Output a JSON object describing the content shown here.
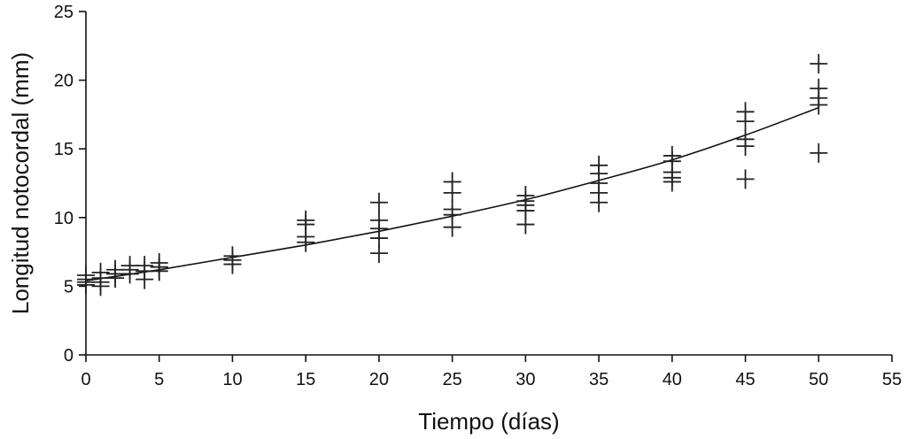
{
  "chart_data": {
    "type": "scatter",
    "xlabel": "Tiempo (días)",
    "ylabel": "Longitud notocordal (mm)",
    "xlim": [
      0,
      55
    ],
    "ylim": [
      0,
      25
    ],
    "xticks": [
      0,
      5,
      10,
      15,
      20,
      25,
      30,
      35,
      40,
      45,
      50,
      55
    ],
    "yticks": [
      0,
      5,
      10,
      15,
      20,
      25
    ],
    "grid": false,
    "marker": "plus",
    "colors": {
      "marks": "#222222",
      "axes": "#111111"
    },
    "points": [
      {
        "x": 0,
        "y": 5.8
      },
      {
        "x": 0,
        "y": 5.5
      },
      {
        "x": 0,
        "y": 5.3
      },
      {
        "x": 0,
        "y": 5.1
      },
      {
        "x": 1,
        "y": 6.0
      },
      {
        "x": 1,
        "y": 5.6
      },
      {
        "x": 1,
        "y": 5.3
      },
      {
        "x": 1,
        "y": 5.0
      },
      {
        "x": 2,
        "y": 6.2
      },
      {
        "x": 2,
        "y": 5.9
      },
      {
        "x": 2,
        "y": 5.6
      },
      {
        "x": 3,
        "y": 6.5
      },
      {
        "x": 3,
        "y": 6.2
      },
      {
        "x": 3,
        "y": 5.9
      },
      {
        "x": 4,
        "y": 6.5
      },
      {
        "x": 4,
        "y": 6.1
      },
      {
        "x": 4,
        "y": 5.5
      },
      {
        "x": 5,
        "y": 6.7
      },
      {
        "x": 5,
        "y": 6.4
      },
      {
        "x": 5,
        "y": 6.1
      },
      {
        "x": 10,
        "y": 7.2
      },
      {
        "x": 10,
        "y": 6.9
      },
      {
        "x": 10,
        "y": 6.6
      },
      {
        "x": 15,
        "y": 9.8
      },
      {
        "x": 15,
        "y": 9.5
      },
      {
        "x": 15,
        "y": 8.6
      },
      {
        "x": 15,
        "y": 8.2
      },
      {
        "x": 20,
        "y": 11.1
      },
      {
        "x": 20,
        "y": 9.8
      },
      {
        "x": 20,
        "y": 9.2
      },
      {
        "x": 20,
        "y": 8.5
      },
      {
        "x": 20,
        "y": 7.4
      },
      {
        "x": 25,
        "y": 12.6
      },
      {
        "x": 25,
        "y": 11.8
      },
      {
        "x": 25,
        "y": 10.6
      },
      {
        "x": 25,
        "y": 10.2
      },
      {
        "x": 25,
        "y": 9.3
      },
      {
        "x": 30,
        "y": 11.6
      },
      {
        "x": 30,
        "y": 11.2
      },
      {
        "x": 30,
        "y": 10.9
      },
      {
        "x": 30,
        "y": 10.5
      },
      {
        "x": 30,
        "y": 9.5
      },
      {
        "x": 35,
        "y": 13.8
      },
      {
        "x": 35,
        "y": 13.2
      },
      {
        "x": 35,
        "y": 12.5
      },
      {
        "x": 35,
        "y": 11.8
      },
      {
        "x": 35,
        "y": 11.1
      },
      {
        "x": 40,
        "y": 14.5
      },
      {
        "x": 40,
        "y": 14.1
      },
      {
        "x": 40,
        "y": 13.3
      },
      {
        "x": 40,
        "y": 12.9
      },
      {
        "x": 40,
        "y": 12.6
      },
      {
        "x": 45,
        "y": 17.7
      },
      {
        "x": 45,
        "y": 17.0
      },
      {
        "x": 45,
        "y": 15.7
      },
      {
        "x": 45,
        "y": 15.2
      },
      {
        "x": 45,
        "y": 12.8
      },
      {
        "x": 50,
        "y": 21.2
      },
      {
        "x": 50,
        "y": 19.4
      },
      {
        "x": 50,
        "y": 18.7
      },
      {
        "x": 50,
        "y": 18.2
      },
      {
        "x": 50,
        "y": 14.7
      }
    ],
    "trendline": {
      "type": "polynomial",
      "x": [
        0,
        5,
        10,
        15,
        20,
        25,
        30,
        35,
        40,
        45,
        50
      ],
      "y": [
        5.4,
        6.2,
        7.1,
        8.0,
        9.0,
        10.1,
        11.3,
        12.7,
        14.2,
        16.0,
        18.0
      ]
    }
  }
}
